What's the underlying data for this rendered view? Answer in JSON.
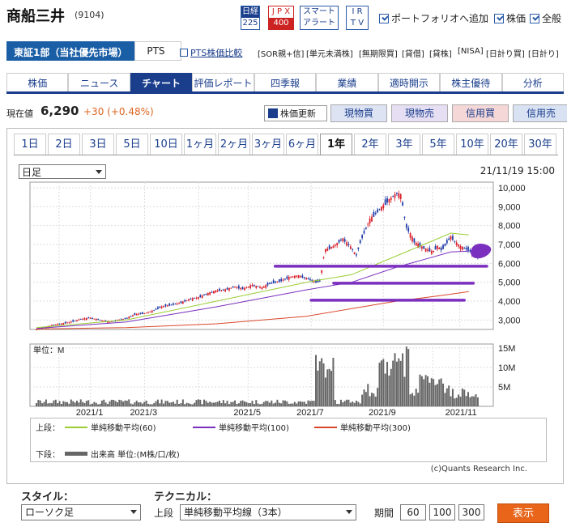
{
  "header": {
    "company_name": "商船三井",
    "code": "(9104)",
    "badge_nikkei": [
      "日経",
      "225"
    ],
    "badge_jpx": [
      "J P X",
      "400"
    ],
    "badge_smart": [
      "スマート",
      "アラート"
    ],
    "badge_ir": [
      "I R",
      "T V"
    ],
    "link_portfolio": "ポートフォリオへ追加",
    "link_stock": "株価",
    "link_all": "全般"
  },
  "market": {
    "selected": "東証1部（当社優先市場）",
    "pts": "PTS",
    "pts_compare": "PTS株価比較",
    "tags": [
      "[SOR親+信]",
      "[単元未満株]",
      "[無期限買]",
      "[貸借]",
      "[貸株]",
      "[NISA]",
      "[日計り買]",
      "[日計り]"
    ]
  },
  "nav": {
    "tabs": [
      "株価",
      "ニュース",
      "チャート",
      "評価レポート",
      "四季報",
      "業績",
      "適時開示",
      "株主優待",
      "分析"
    ],
    "active": 2
  },
  "price": {
    "label": "現在値",
    "value": "6,290",
    "change": "+30 (+0.48%)",
    "update_btn": "株価更新",
    "buy": "現物買",
    "sell": "現物売",
    "margin_buy": "信用買",
    "margin_sell": "信用売"
  },
  "periods": {
    "items": [
      "1日",
      "2日",
      "3日",
      "5日",
      "10日",
      "1ヶ月",
      "2ヶ月",
      "3ヶ月",
      "6ヶ月",
      "1年",
      "2年",
      "3年",
      "5年",
      "10年",
      "20年",
      "30年"
    ],
    "active": 9
  },
  "chart_panel": {
    "interval": "日足",
    "datetime": "21/11/19 15:00",
    "volume_unit": "単位：M",
    "legend_upper": "上段：",
    "legend_lower": "下段：",
    "ma60": "単純移動平均(60)",
    "ma100": "単純移動平均(100)",
    "ma300": "単純移動平均(300)",
    "volume_label": "出来高 単位:(M株/口/枚)",
    "copyright": "(c)Quants Research Inc.",
    "colors": {
      "ma60": "#9acd32",
      "ma100": "#7b2fbe",
      "ma300": "#d9482b",
      "up": "#d9202a",
      "down": "#1f3da6",
      "volume": "#666666",
      "annotation": "#7b2fbe"
    }
  },
  "chart_data": {
    "type": "candlestick",
    "price_axis": {
      "ticks": [
        3000,
        4000,
        5000,
        6000,
        7000,
        8000,
        9000,
        10000
      ],
      "tick_labels": [
        "3,000",
        "4,000",
        "5,000",
        "6,000",
        "7,000",
        "8,000",
        "9,000",
        "10,000"
      ],
      "range": [
        2500,
        10300
      ]
    },
    "volume_axis": {
      "ticks": [
        5,
        10,
        15
      ],
      "tick_labels": [
        "5M",
        "10M",
        "15M"
      ],
      "range": [
        0,
        16
      ]
    },
    "x_labels": [
      "2021/1",
      "2021/3",
      "2021/5",
      "2021/7",
      "2021/9",
      "2021/11"
    ],
    "x_label_positions": [
      0.12,
      0.24,
      0.47,
      0.61,
      0.77,
      0.94
    ],
    "close_path": [
      [
        0,
        2.5
      ],
      [
        0.02,
        2.62
      ],
      [
        0.04,
        2.75
      ],
      [
        0.06,
        2.82
      ],
      [
        0.08,
        2.92
      ],
      [
        0.1,
        3.05
      ],
      [
        0.12,
        3.12
      ],
      [
        0.14,
        3.0
      ],
      [
        0.16,
        2.9
      ],
      [
        0.18,
        2.98
      ],
      [
        0.2,
        3.1
      ],
      [
        0.22,
        3.3
      ],
      [
        0.24,
        3.35
      ],
      [
        0.26,
        3.5
      ],
      [
        0.28,
        3.72
      ],
      [
        0.3,
        3.8
      ],
      [
        0.32,
        3.9
      ],
      [
        0.34,
        4.1
      ],
      [
        0.36,
        4.2
      ],
      [
        0.38,
        4.4
      ],
      [
        0.4,
        4.55
      ],
      [
        0.42,
        4.6
      ],
      [
        0.44,
        4.75
      ],
      [
        0.46,
        4.65
      ],
      [
        0.48,
        4.85
      ],
      [
        0.5,
        4.7
      ],
      [
        0.52,
        4.95
      ],
      [
        0.54,
        5.05
      ],
      [
        0.56,
        5.25
      ],
      [
        0.58,
        5.35
      ],
      [
        0.6,
        5.2
      ],
      [
        0.62,
        5.0
      ],
      [
        0.63,
        5.05
      ],
      [
        0.64,
        6.7
      ],
      [
        0.66,
        6.9
      ],
      [
        0.68,
        7.3
      ],
      [
        0.7,
        6.8
      ],
      [
        0.71,
        6.4
      ],
      [
        0.72,
        7.2
      ],
      [
        0.74,
        8.3
      ],
      [
        0.76,
        8.8
      ],
      [
        0.78,
        9.3
      ],
      [
        0.8,
        9.7
      ],
      [
        0.81,
        9.6
      ],
      [
        0.82,
        8.0
      ],
      [
        0.84,
        7.1
      ],
      [
        0.86,
        6.8
      ],
      [
        0.88,
        6.6
      ],
      [
        0.89,
        6.9
      ],
      [
        0.9,
        6.7
      ],
      [
        0.92,
        7.4
      ],
      [
        0.94,
        6.9
      ],
      [
        0.96,
        6.7
      ],
      [
        0.97,
        6.5
      ],
      [
        0.98,
        6.3
      ]
    ],
    "ma60_path": [
      [
        0,
        2.6
      ],
      [
        0.2,
        3.0
      ],
      [
        0.4,
        4.0
      ],
      [
        0.6,
        5.0
      ],
      [
        0.7,
        5.4
      ],
      [
        0.8,
        6.4
      ],
      [
        0.86,
        7.0
      ],
      [
        0.92,
        7.6
      ],
      [
        0.96,
        7.5
      ]
    ],
    "ma100_path": [
      [
        0,
        2.55
      ],
      [
        0.2,
        2.9
      ],
      [
        0.4,
        3.7
      ],
      [
        0.6,
        4.6
      ],
      [
        0.7,
        5.0
      ],
      [
        0.8,
        5.8
      ],
      [
        0.86,
        6.2
      ],
      [
        0.92,
        6.6
      ],
      [
        0.96,
        6.65
      ]
    ],
    "ma300_path": [
      [
        0,
        2.52
      ],
      [
        0.2,
        2.6
      ],
      [
        0.4,
        2.8
      ],
      [
        0.6,
        3.2
      ],
      [
        0.7,
        3.6
      ],
      [
        0.8,
        4.0
      ],
      [
        0.9,
        4.3
      ],
      [
        0.96,
        4.5
      ]
    ],
    "annotation_lines": [
      [
        [
          0.53,
          5.85
        ],
        [
          1.0,
          5.85
        ]
      ],
      [
        [
          0.66,
          4.95
        ],
        [
          0.97,
          4.95
        ]
      ],
      [
        [
          0.61,
          4.05
        ],
        [
          0.95,
          4.05
        ]
      ]
    ]
  },
  "bottom": {
    "style_label": "スタイル：",
    "style_value": "ローソク足",
    "tech_label": "テクニカル：",
    "upper_label": "上段",
    "tech_value": "単純移動平均線（3本）",
    "period_label": "期間",
    "periods": [
      "60",
      "100",
      "300"
    ],
    "show_btn": "表示"
  }
}
